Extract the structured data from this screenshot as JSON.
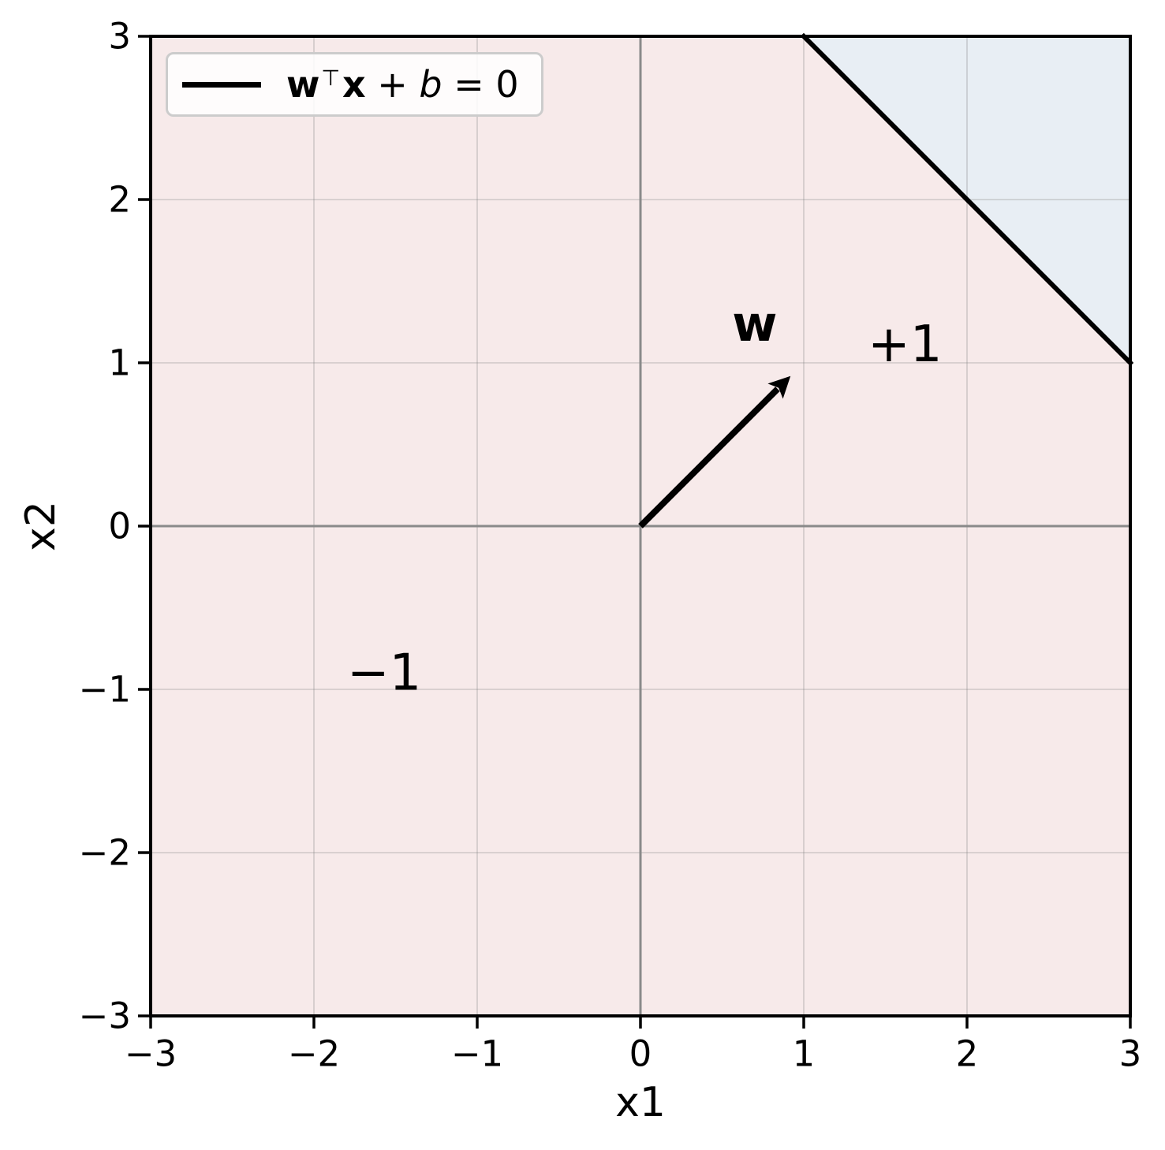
{
  "chart_data": {
    "type": "line",
    "title": "",
    "xlabel": "x1",
    "ylabel": "x2",
    "xlim": [
      -3,
      3
    ],
    "ylim": [
      -3,
      3
    ],
    "xticks": [
      -3,
      -2,
      -1,
      0,
      1,
      2,
      3
    ],
    "yticks": [
      -3,
      -2,
      -1,
      0,
      1,
      2,
      3
    ],
    "grid": true,
    "grid_color": "rgba(128,128,128,0.33)",
    "zero_line_color": "#8a8a8a",
    "background_color": "#ffffff",
    "boundary_line": {
      "label": "w⊤x + b = 0",
      "color": "#000000",
      "x": [
        1,
        3
      ],
      "y": [
        3,
        1
      ]
    },
    "regions": {
      "positive": {
        "label": "+1",
        "label_color": "#4682b4",
        "label_xy": [
          1.62,
          1.11
        ],
        "fill": "#e8eef4",
        "polygon": [
          [
            1,
            3
          ],
          [
            3,
            3
          ],
          [
            3,
            1
          ]
        ]
      },
      "negative": {
        "label": "−1",
        "label_color": "#cd5c5c",
        "label_xy": [
          -1.57,
          -0.9
        ],
        "fill": "#f7eaea"
      }
    },
    "weight_vector": {
      "label": "w",
      "color": "#000000",
      "from": [
        0,
        0
      ],
      "to": [
        1,
        1
      ],
      "label_xy": [
        0.7,
        1.24
      ]
    },
    "legend": {
      "position": "upper left",
      "entries": [
        {
          "label": "w⊤x + b = 0",
          "line_color": "#000000",
          "label_parts": [
            {
              "text": "w",
              "style": "bold"
            },
            {
              "text": "⊤",
              "style": "sup"
            },
            {
              "text": "x",
              "style": "bold"
            },
            {
              "text": " + ",
              "style": "normal"
            },
            {
              "text": "b",
              "style": "italic"
            },
            {
              "text": " = 0",
              "style": "normal"
            }
          ]
        }
      ]
    }
  }
}
